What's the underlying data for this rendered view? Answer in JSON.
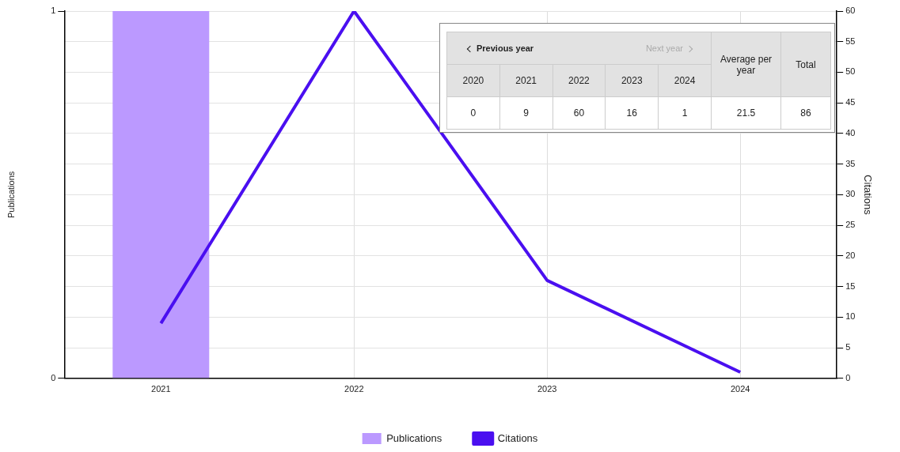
{
  "chart_data": {
    "type": "bar",
    "categories": [
      "2021",
      "2022",
      "2023",
      "2024"
    ],
    "ylabel": "Publications",
    "y2label": "Citations",
    "ylim": [
      0,
      1
    ],
    "yticks": [
      0,
      1
    ],
    "y2lim": [
      0,
      60
    ],
    "y2ticks": [
      0,
      5,
      10,
      15,
      20,
      25,
      30,
      35,
      40,
      45,
      50,
      55,
      60
    ],
    "grid": true,
    "legend": "bottom",
    "marker": "none",
    "line_style": "solid",
    "series": [
      {
        "name": "Publications",
        "color": "#bb99ff",
        "values": [
          1,
          0,
          0,
          0
        ]
      },
      {
        "name": "Citations",
        "type": "line",
        "axis": "y2",
        "color": "#4a0ff0",
        "values": [
          9,
          60,
          16,
          1
        ]
      }
    ],
    "annotations": [
      "Previous year",
      "Next year",
      "Average per year",
      "Total",
      "2020",
      "0",
      "2021",
      "9",
      "2022",
      "60",
      "2023",
      "16",
      "2024",
      "1",
      "21.5",
      "86"
    ]
  }
}
